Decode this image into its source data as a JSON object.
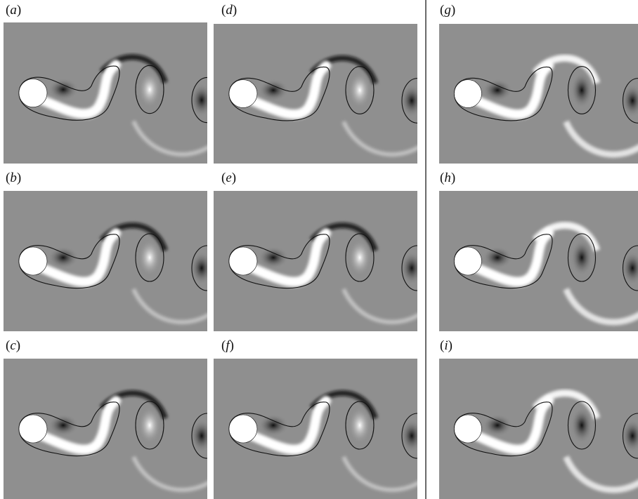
{
  "figure": {
    "panels": [
      {
        "id": "a",
        "open": "(",
        "letter": "a",
        "close": ")",
        "column": 0,
        "row": 0
      },
      {
        "id": "b",
        "open": "(",
        "letter": "b",
        "close": ")",
        "column": 0,
        "row": 1
      },
      {
        "id": "c",
        "open": "(",
        "letter": "c",
        "close": ")",
        "column": 0,
        "row": 2
      },
      {
        "id": "d",
        "open": "(",
        "letter": "d",
        "close": ")",
        "column": 1,
        "row": 0
      },
      {
        "id": "e",
        "open": "(",
        "letter": "e",
        "close": ")",
        "column": 1,
        "row": 1
      },
      {
        "id": "f",
        "open": "(",
        "letter": "f",
        "close": ")",
        "column": 1,
        "row": 2
      },
      {
        "id": "g",
        "open": "(",
        "letter": "g",
        "close": ")",
        "column": 2,
        "row": 0
      },
      {
        "id": "h",
        "open": "(",
        "letter": "h",
        "close": ")",
        "column": 2,
        "row": 1
      },
      {
        "id": "i",
        "open": "(",
        "letter": "i",
        "close": ")",
        "column": 2,
        "row": 2
      }
    ],
    "colors": {
      "background_field": "#8f8f8f",
      "cylinder": "#ffffff",
      "negative_vorticity": "#101010",
      "positive_vorticity": "#ffffff",
      "contour": "#111111",
      "divider": "#6a6a6a"
    }
  }
}
